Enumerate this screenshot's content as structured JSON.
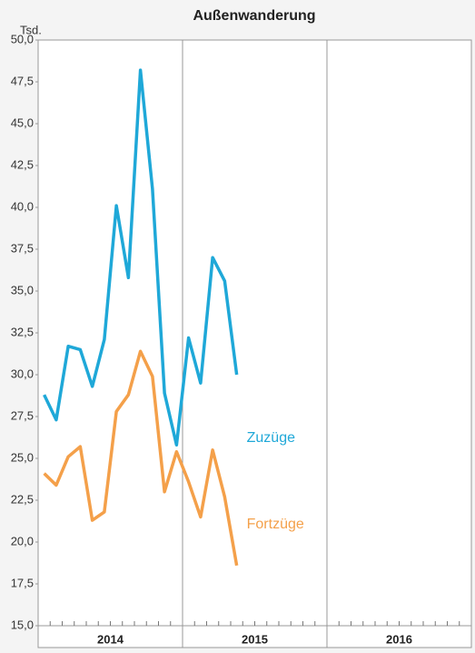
{
  "chart_data": {
    "type": "line",
    "title": "Außenwanderung",
    "y_unit": "Tsd.",
    "categories": [
      null,
      null,
      null,
      null,
      null,
      null,
      null,
      null,
      null,
      null,
      null,
      null,
      null,
      null,
      null,
      null,
      null,
      null,
      null,
      null,
      null,
      null,
      null,
      null,
      null,
      null,
      null,
      null,
      null,
      null,
      null,
      null,
      null,
      null,
      null,
      null
    ],
    "year_labels": [
      "2014",
      "2015",
      "2016"
    ],
    "series": [
      {
        "name": "Zuzüge",
        "color": "#1fa8d8",
        "values": [
          28.8,
          27.3,
          31.7,
          31.5,
          29.3,
          32.1,
          40.1,
          35.8,
          48.2,
          41.1,
          28.9,
          25.8,
          32.2,
          29.5,
          37.0,
          35.6,
          30.0,
          null,
          null,
          null,
          null,
          null,
          null,
          null,
          null,
          null,
          null,
          null,
          null,
          null,
          null,
          null,
          null,
          null,
          null,
          null
        ]
      },
      {
        "name": "Fortzüge",
        "color": "#f4a04a",
        "values": [
          24.1,
          23.4,
          25.1,
          25.7,
          21.3,
          21.8,
          27.8,
          28.8,
          31.4,
          29.9,
          23.0,
          25.4,
          23.6,
          21.5,
          25.5,
          22.7,
          18.6,
          null,
          null,
          null,
          null,
          null,
          null,
          null,
          null,
          null,
          null,
          null,
          null,
          null,
          null,
          null,
          null,
          null,
          null,
          null
        ]
      }
    ],
    "ylim": [
      15,
      50
    ],
    "yticks": [
      {
        "value": 15,
        "label": "15,0"
      },
      {
        "value": 17.5,
        "label": "17,5"
      },
      {
        "value": 20,
        "label": "20,0"
      },
      {
        "value": 22.5,
        "label": "22,5"
      },
      {
        "value": 25,
        "label": "25,0"
      },
      {
        "value": 27.5,
        "label": "27,5"
      },
      {
        "value": 30,
        "label": "30,0"
      },
      {
        "value": 32.5,
        "label": "32,5"
      },
      {
        "value": 35,
        "label": "35,0"
      },
      {
        "value": 37.5,
        "label": "37,5"
      },
      {
        "value": 40,
        "label": "40,0"
      },
      {
        "value": 42.5,
        "label": "42,5"
      },
      {
        "value": 45,
        "label": "45,0"
      },
      {
        "value": 47.5,
        "label": "47,5"
      },
      {
        "value": 50,
        "label": "50,0"
      }
    ]
  }
}
